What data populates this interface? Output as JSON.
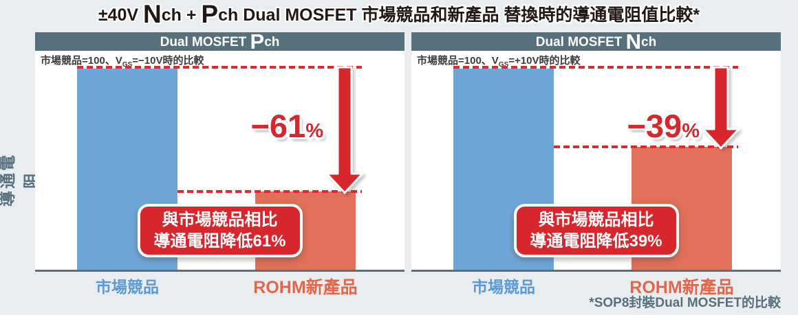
{
  "title": {
    "t1": "±40V ",
    "big1": "N",
    "t2": "ch + ",
    "big2": "P",
    "t3": "ch Dual MOSFET 市場競品和新產品 替換時的導通電阻值比較*"
  },
  "y_axis_label": "導通電阻",
  "footnote": "*SOP8封裝Dual MOSFET的比較",
  "panels": [
    {
      "header": {
        "prefix": "Dual MOSFET ",
        "big": "P",
        "suffix": "ch"
      },
      "caption": {
        "pre": "市場競品=100、V",
        "sub": "GS",
        "post": "=−10V時的比較"
      },
      "reduction": {
        "value": "−61",
        "percent": "%"
      },
      "callout": {
        "line1": "與市場競品相比",
        "line2": "導通電阻降低61%"
      },
      "x_labels": {
        "competitor": "市場競品",
        "new_product": "ROHM新產品"
      }
    },
    {
      "header": {
        "prefix": "Dual MOSFET ",
        "big": "N",
        "suffix": "ch"
      },
      "caption": {
        "pre": "市場競品=100、V",
        "sub": "GS",
        "post": "=+10V時的比較"
      },
      "reduction": {
        "value": "−39",
        "percent": "%"
      },
      "callout": {
        "line1": "與市場競品相比",
        "line2": "導通電阻降低39%"
      },
      "x_labels": {
        "competitor": "市場競品",
        "new_product": "ROHM新產品"
      }
    }
  ],
  "chart_data": [
    {
      "type": "bar",
      "title": "Dual MOSFET Pch",
      "categories": [
        "市場競品",
        "ROHM新產品"
      ],
      "values": [
        100,
        39
      ],
      "ylabel": "導通電阻",
      "ylim": [
        0,
        100
      ],
      "grid": false,
      "note": "市場競品=100、VGS=−10V時的比較",
      "annotations": [
        "−61%",
        "與市場競品相比 導通電阻降低61%"
      ]
    },
    {
      "type": "bar",
      "title": "Dual MOSFET Nch",
      "categories": [
        "市場競品",
        "ROHM新產品"
      ],
      "values": [
        100,
        61
      ],
      "ylabel": "導通電阻",
      "ylim": [
        0,
        100
      ],
      "grid": false,
      "note": "市場競品=100、VGS=+10V時的比較",
      "annotations": [
        "−39%",
        "與市場競品相比 導通電阻降低39%"
      ]
    }
  ],
  "colors": {
    "page_bg": "#e9edf0",
    "panel_header_bg": "#56707e",
    "competitor_bar": "#6fa6d8",
    "new_product_bar": "#e0705a",
    "accent_red": "#d7262c",
    "dash_red": "#e0282d",
    "competitor_label": "#5b9ad6",
    "new_product_label": "#e2674a",
    "slate_text": "#56707e",
    "title_text": "#231815",
    "axis_line": "#5a6e7a"
  }
}
